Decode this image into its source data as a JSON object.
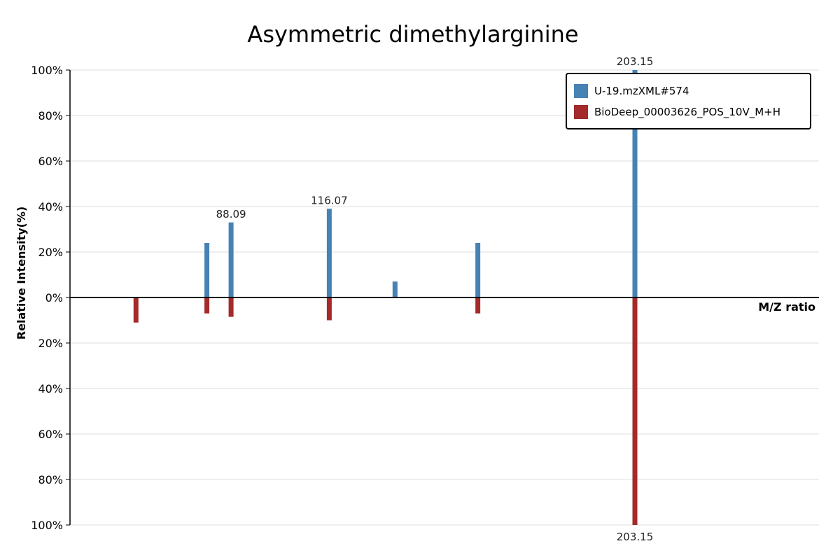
{
  "chart_data": {
    "type": "bar",
    "title": "Asymmetric dimethylarginine",
    "xlabel": "M/Z ratio",
    "ylabel": "Relative Intensity(%)",
    "ylim": [
      -100,
      100
    ],
    "yticks": [
      {
        "value": 100,
        "label": "100%"
      },
      {
        "value": 80,
        "label": "80%"
      },
      {
        "value": 60,
        "label": "60%"
      },
      {
        "value": 40,
        "label": "40%"
      },
      {
        "value": 20,
        "label": "20%"
      },
      {
        "value": 0,
        "label": "0%"
      },
      {
        "value": -20,
        "label": "20%"
      },
      {
        "value": -40,
        "label": "40%"
      },
      {
        "value": -60,
        "label": "60%"
      },
      {
        "value": -80,
        "label": "80%"
      },
      {
        "value": -100,
        "label": "100%"
      }
    ],
    "xlim": [
      42.2,
      255.6
    ],
    "grid": true,
    "legend_position": "top-right",
    "series": [
      {
        "name": "U-19.mzXML#574",
        "color": "#4682b4",
        "direction": "up",
        "peaks": [
          {
            "mz": 81.2,
            "value": 24
          },
          {
            "mz": 88.09,
            "value": 33,
            "label": "88.09"
          },
          {
            "mz": 116.07,
            "value": 39,
            "label": "116.07"
          },
          {
            "mz": 134.8,
            "value": 7
          },
          {
            "mz": 158.4,
            "value": 24
          },
          {
            "mz": 203.15,
            "value": 100,
            "label": "203.15"
          }
        ]
      },
      {
        "name": "BioDeep_00003626_POS_10V_M+H",
        "color": "#a52a2a",
        "direction": "down",
        "peaks": [
          {
            "mz": 61.0,
            "value": 11
          },
          {
            "mz": 81.2,
            "value": 7
          },
          {
            "mz": 88.09,
            "value": 8.5
          },
          {
            "mz": 116.07,
            "value": 10
          },
          {
            "mz": 158.4,
            "value": 7
          },
          {
            "mz": 203.15,
            "value": 100,
            "label": "203.15"
          }
        ]
      }
    ]
  }
}
